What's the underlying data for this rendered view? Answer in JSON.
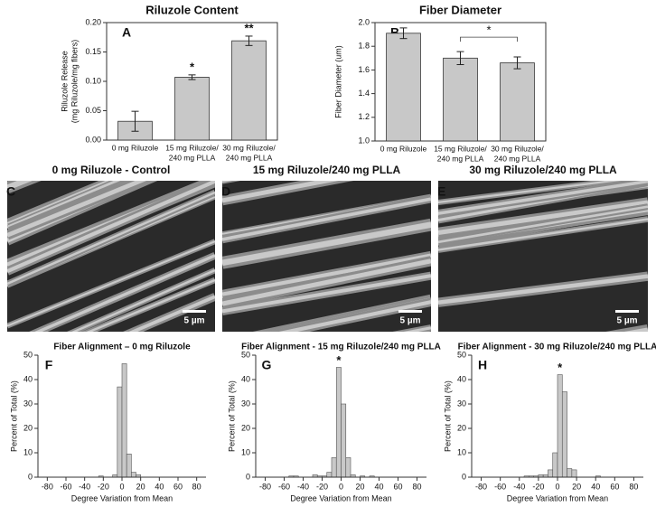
{
  "chart_data": [
    {
      "type": "bar",
      "panel": "A",
      "title": "Riluzole Content",
      "ylabel": [
        "Riluzole Release",
        "(mg Riluzole/mg fibers)"
      ],
      "categories": [
        [
          "0 mg Riluzole"
        ],
        [
          "15 mg Riluzole/",
          "240 mg PLLA"
        ],
        [
          "30 mg Riluzole/",
          "240 mg PLLA"
        ]
      ],
      "values": [
        0.032,
        0.107,
        0.169
      ],
      "errors": [
        0.017,
        0.004,
        0.008
      ],
      "value_annotations": [
        null,
        "*",
        "**"
      ],
      "color": "#c8c8c8",
      "ylim": [
        0,
        0.2
      ],
      "yticks": [
        {
          "value": 0,
          "label": "0.00"
        },
        {
          "value": 0.05,
          "label": "0.05"
        },
        {
          "value": 0.1,
          "label": "0.10"
        },
        {
          "value": 0.15,
          "label": "0.15"
        },
        {
          "value": 0.2,
          "label": "0.20"
        }
      ]
    },
    {
      "type": "bar",
      "panel": "B",
      "title": "Fiber Diameter",
      "ylabel": [
        "Fiber Diameter (um)"
      ],
      "categories": [
        [
          "0 mg Riluzole"
        ],
        [
          "15 mg Riluzole/",
          "240 mg PLLA"
        ],
        [
          "30 mg Riluzole/",
          "240 mg PLLA"
        ]
      ],
      "values": [
        1.91,
        1.7,
        1.66
      ],
      "errors": [
        0.045,
        0.055,
        0.05
      ],
      "brackets": [
        {
          "categories": [
            1,
            2
          ],
          "label": "*"
        }
      ],
      "color": "#c8c8c8",
      "ylim": [
        1.0,
        2.0
      ],
      "yticks": [
        {
          "value": 1.0,
          "label": "1.0"
        },
        1.2,
        1.4,
        1.6,
        1.8,
        {
          "value": 2.0,
          "label": "2.0"
        }
      ]
    },
    {
      "type": "histogram",
      "panel": "F",
      "title": "Fiber Alignment – 0 mg Riluzole",
      "xlabel": "Degree Variation from Mean",
      "ylabel": "Percent of Total (%)",
      "color": "#c8c8c8",
      "bins": [
        -60,
        -55,
        -50,
        -45,
        -40,
        -35,
        -30,
        -25,
        -20,
        -15,
        -10,
        -5,
        0,
        5,
        10,
        15,
        20,
        25,
        30,
        35,
        40,
        45,
        50
      ],
      "values": [
        0,
        0,
        0,
        0,
        0,
        0,
        0,
        0.5,
        0,
        0,
        1,
        37,
        46.5,
        9.5,
        2,
        1,
        0,
        0,
        0,
        0,
        0,
        0
      ],
      "xlim": [
        -90,
        90
      ],
      "xticks": [
        -80,
        -60,
        -40,
        -20,
        0,
        20,
        40,
        60,
        80
      ],
      "ylim": [
        0,
        50
      ],
      "yticks": [
        0,
        10,
        20,
        30,
        40,
        50
      ]
    },
    {
      "type": "histogram",
      "panel": "G",
      "title": "Fiber Alignment  - 15 mg Riluzole/240 mg PLLA",
      "xlabel": "Degree Variation from Mean",
      "ylabel": "Percent of Total (%)",
      "color": "#c8c8c8",
      "peak_label": "*",
      "bins": [
        -60,
        -55,
        -50,
        -45,
        -40,
        -35,
        -30,
        -25,
        -20,
        -15,
        -10,
        -5,
        0,
        5,
        10,
        15,
        20,
        25,
        30,
        35,
        40,
        45,
        50
      ],
      "values": [
        0,
        0.5,
        0.5,
        0,
        0,
        0,
        1,
        0.5,
        0.5,
        2,
        8,
        45,
        30,
        8,
        1,
        0,
        0.5,
        0,
        0.5,
        0,
        0,
        0
      ],
      "xlim": [
        -90,
        90
      ],
      "xticks": [
        -80,
        -60,
        -40,
        -20,
        0,
        20,
        40,
        60,
        80
      ],
      "ylim": [
        0,
        50
      ],
      "yticks": [
        0,
        10,
        20,
        30,
        40,
        50
      ]
    },
    {
      "type": "histogram",
      "panel": "H",
      "title": "Fiber Alignment  - 30 mg Riluzole/240 mg PLLA",
      "xlabel": "Degree Variation from Mean",
      "ylabel": "Percent of Total (%)",
      "color": "#c8c8c8",
      "peak_label": "*",
      "bins": [
        -60,
        -55,
        -50,
        -45,
        -40,
        -35,
        -30,
        -25,
        -20,
        -15,
        -10,
        -5,
        0,
        5,
        10,
        15,
        20,
        25,
        30,
        35,
        40,
        45,
        50
      ],
      "values": [
        0,
        0,
        0,
        0,
        0,
        0.5,
        0.5,
        0.5,
        1,
        1,
        3,
        10,
        42,
        35,
        3.5,
        3,
        0,
        0,
        0,
        0,
        0.5,
        0
      ],
      "xlim": [
        -90,
        90
      ],
      "xticks": [
        -80,
        -60,
        -40,
        -20,
        0,
        20,
        40,
        60,
        80
      ],
      "ylim": [
        0,
        50
      ],
      "yticks": [
        0,
        10,
        20,
        30,
        40,
        50
      ]
    }
  ],
  "images": [
    {
      "panel": "C",
      "title": "0 mg Riluzole - Control",
      "scale_label": "5 µm"
    },
    {
      "panel": "D",
      "title": "15 mg Riluzole/240 mg PLLA",
      "scale_label": "5 µm"
    },
    {
      "panel": "E",
      "title": "30 mg Riluzole/240 mg PLLA",
      "scale_label": "5 µm"
    }
  ]
}
